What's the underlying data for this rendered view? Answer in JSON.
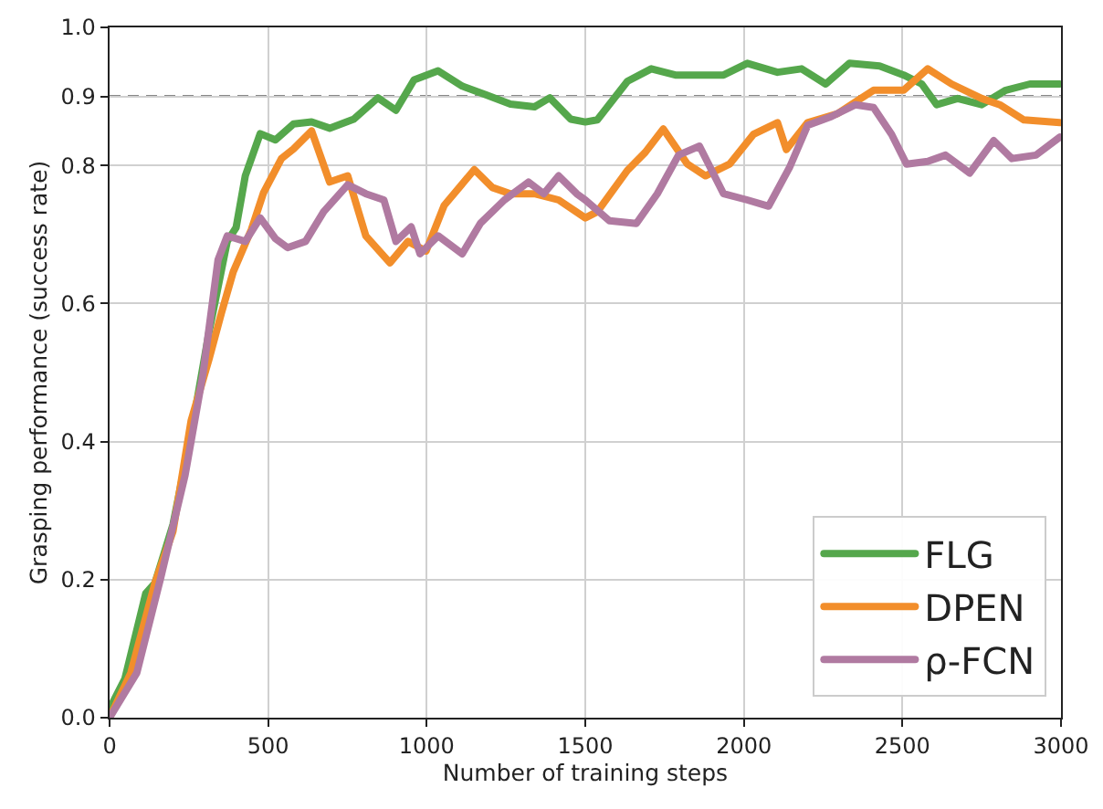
{
  "chart_data": {
    "type": "line",
    "xlabel": "Number of training steps",
    "ylabel": "Grasping performance (success rate)",
    "xlim": [
      0,
      3000
    ],
    "xticks": [
      0,
      500,
      1000,
      1500,
      2000,
      2500,
      3000
    ],
    "ylim": [
      0,
      1
    ],
    "yticks": [
      {
        "value": 0,
        "label": "0.0"
      },
      {
        "value": 0.2,
        "label": "0.2"
      },
      {
        "value": 0.4,
        "label": "0.4"
      },
      {
        "value": 0.6,
        "label": "0.6"
      },
      {
        "value": 0.8,
        "label": "0.8"
      },
      {
        "value": 0.9,
        "label": "0.9"
      },
      {
        "value": 1,
        "label": "1.0"
      }
    ],
    "grid": true,
    "legend": "bottom right",
    "marker": "none",
    "line_style": "solid",
    "ref_lines": [
      {
        "axis": "y",
        "value": 0.9,
        "color": "#888888",
        "line_style": "dashed"
      }
    ],
    "series": [
      {
        "name": "FLG",
        "color": "#55a74c",
        "x": [
          0,
          48,
          114,
          143,
          200,
          257,
          314,
          371,
          399,
          428,
          475,
          523,
          580,
          637,
          694,
          770,
          846,
          903,
          960,
          1036,
          1112,
          1188,
          1264,
          1340,
          1388,
          1454,
          1500,
          1538,
          1633,
          1708,
          1784,
          1860,
          1936,
          2011,
          2106,
          2182,
          2258,
          2333,
          2428,
          2504,
          2561,
          2608,
          2674,
          2750,
          2826,
          2902,
          2996
        ],
        "values": [
          0.013,
          0.056,
          0.18,
          0.195,
          0.28,
          0.41,
          0.56,
          0.69,
          0.71,
          0.785,
          0.846,
          0.837,
          0.86,
          0.863,
          0.854,
          0.867,
          0.898,
          0.88,
          0.924,
          0.937,
          0.915,
          0.902,
          0.889,
          0.885,
          0.898,
          0.867,
          0.863,
          0.866,
          0.922,
          0.94,
          0.931,
          0.931,
          0.931,
          0.948,
          0.935,
          0.94,
          0.918,
          0.948,
          0.944,
          0.931,
          0.918,
          0.888,
          0.897,
          0.888,
          0.909,
          0.918,
          0.918
        ]
      },
      {
        "name": "DPEN",
        "color": "#f28e2b",
        "x": [
          0,
          67,
          143,
          200,
          257,
          314,
          352,
          390,
          447,
          485,
          542,
          580,
          637,
          694,
          751,
          808,
          884,
          941,
          998,
          1055,
          1150,
          1207,
          1264,
          1340,
          1416,
          1500,
          1538,
          1633,
          1689,
          1746,
          1822,
          1879,
          1955,
          2030,
          2106,
          2134,
          2201,
          2295,
          2352,
          2409,
          2504,
          2580,
          2655,
          2750,
          2807,
          2883,
          2996
        ],
        "values": [
          0,
          0.065,
          0.195,
          0.27,
          0.43,
          0.52,
          0.585,
          0.646,
          0.707,
          0.76,
          0.81,
          0.824,
          0.85,
          0.776,
          0.785,
          0.698,
          0.659,
          0.69,
          0.676,
          0.742,
          0.794,
          0.768,
          0.759,
          0.759,
          0.75,
          0.724,
          0.733,
          0.793,
          0.819,
          0.853,
          0.802,
          0.785,
          0.802,
          0.845,
          0.862,
          0.823,
          0.862,
          0.875,
          0.892,
          0.909,
          0.909,
          0.94,
          0.918,
          0.897,
          0.888,
          0.866,
          0.862
        ]
      },
      {
        "name": "ρ-FCN",
        "color": "#b07aa1",
        "x": [
          0,
          86,
          162,
          238,
          295,
          342,
          371,
          428,
          475,
          523,
          561,
          618,
          675,
          751,
          808,
          865,
          903,
          951,
          979,
          1036,
          1112,
          1169,
          1245,
          1321,
          1369,
          1416,
          1473,
          1500,
          1576,
          1661,
          1727,
          1794,
          1860,
          1936,
          2011,
          2078,
          2144,
          2201,
          2277,
          2352,
          2409,
          2466,
          2513,
          2580,
          2636,
          2712,
          2788,
          2845,
          2921,
          2996
        ],
        "values": [
          0,
          0.065,
          0.204,
          0.351,
          0.499,
          0.663,
          0.698,
          0.69,
          0.724,
          0.694,
          0.681,
          0.69,
          0.733,
          0.772,
          0.759,
          0.75,
          0.69,
          0.711,
          0.672,
          0.698,
          0.672,
          0.716,
          0.75,
          0.776,
          0.759,
          0.785,
          0.759,
          0.75,
          0.72,
          0.716,
          0.759,
          0.815,
          0.828,
          0.759,
          0.75,
          0.741,
          0.797,
          0.858,
          0.871,
          0.888,
          0.884,
          0.845,
          0.802,
          0.806,
          0.815,
          0.789,
          0.836,
          0.81,
          0.815,
          0.841
        ]
      }
    ]
  }
}
